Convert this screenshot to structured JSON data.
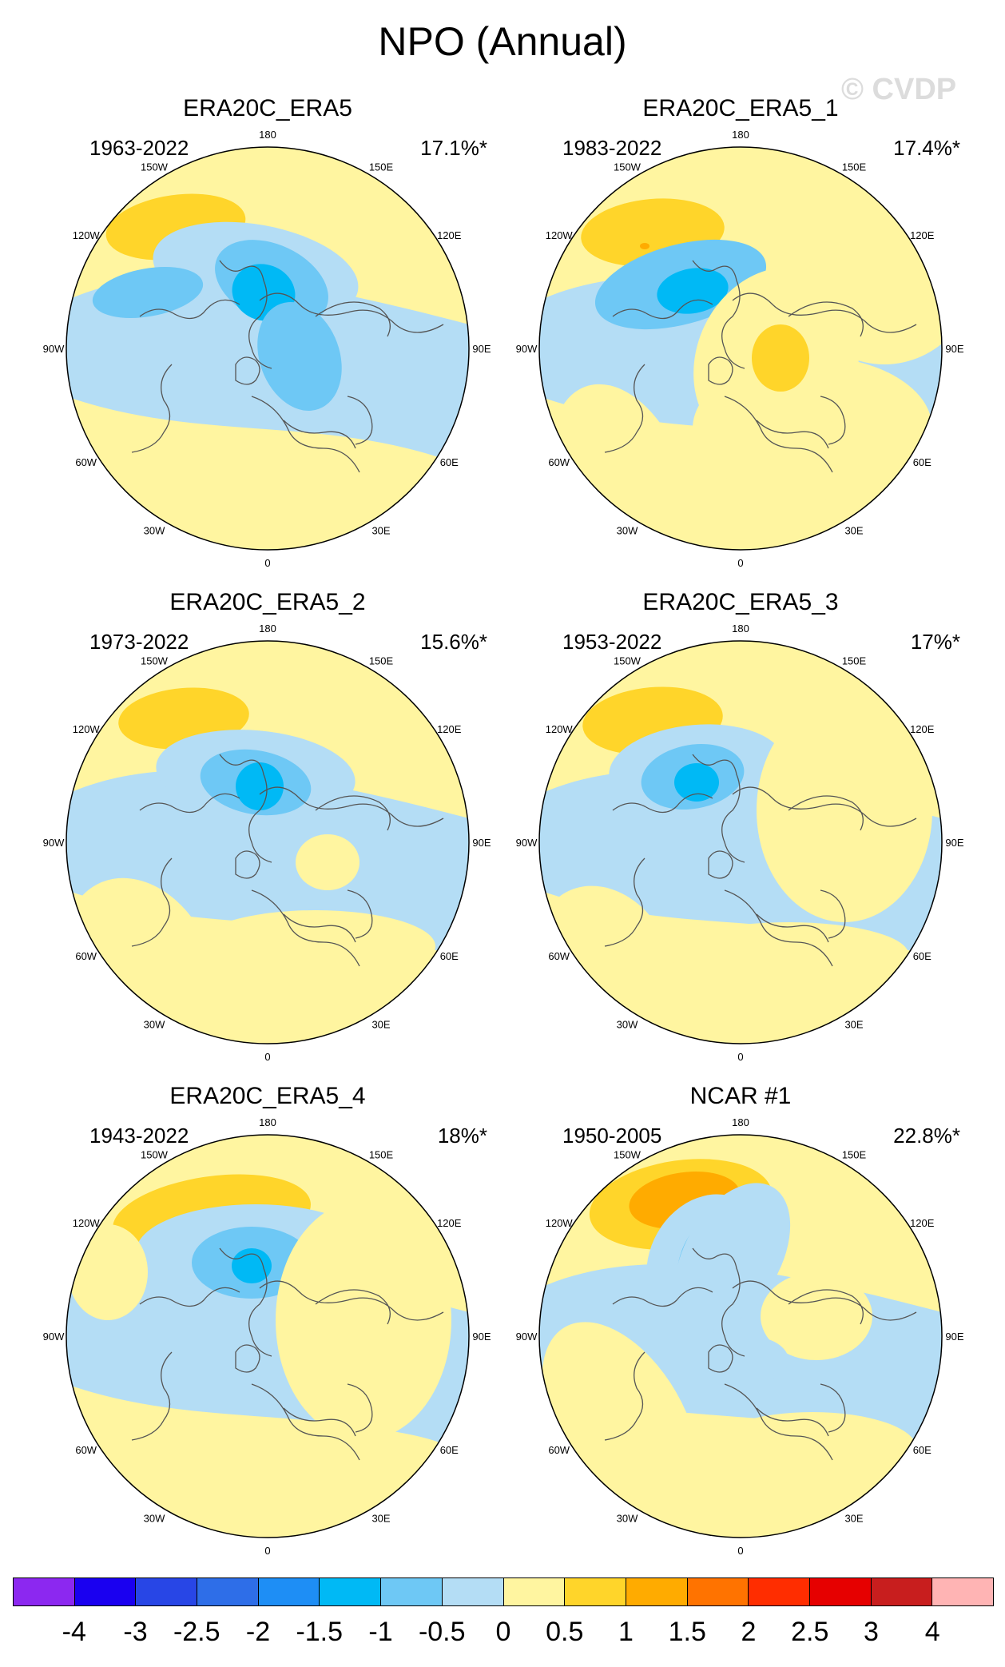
{
  "title": "NPO (Annual)",
  "watermark": "© CVDP",
  "lon_labels": {
    "top": "180",
    "bottom": "0",
    "upper_left": "150W",
    "upper_right": "150E",
    "left_upper": "120W",
    "right_upper": "120E",
    "left": "90W",
    "right": "90E",
    "left_lower": "60W",
    "right_lower": "60E",
    "lower_left": "30W",
    "lower_right": "30E"
  },
  "colors": {
    "ocean_neg": "#b4ddf5",
    "neutral_pos": "#fff5a0",
    "land_line": "#555555"
  },
  "panels": [
    {
      "title": "ERA20C_ERA5",
      "years": "1963-2022",
      "pct": "17.1%*"
    },
    {
      "title": "ERA20C_ERA5_1",
      "years": "1983-2022",
      "pct": "17.4%*"
    },
    {
      "title": "ERA20C_ERA5_2",
      "years": "1973-2022",
      "pct": "15.6%*"
    },
    {
      "title": "ERA20C_ERA5_3",
      "years": "1953-2022",
      "pct": "17%*"
    },
    {
      "title": "ERA20C_ERA5_4",
      "years": "1943-2022",
      "pct": "18%*"
    },
    {
      "title": "NCAR #1",
      "years": "1950-2005",
      "pct": "22.8%*"
    }
  ],
  "colorbar": {
    "colors": [
      "#8c28f0",
      "#1a00f0",
      "#2846e6",
      "#2e6ee8",
      "#1e8ef5",
      "#00b9f5",
      "#6ec8f5",
      "#b4ddf5",
      "#fff5a0",
      "#ffd52a",
      "#ffab00",
      "#ff7300",
      "#ff2d00",
      "#e60000",
      "#c81e1e",
      "#ffb4b4"
    ],
    "labels": [
      "-4",
      "-3",
      "-2.5",
      "-2",
      "-1.5",
      "-1",
      "-0.5",
      "0",
      "0.5",
      "1",
      "1.5",
      "2",
      "2.5",
      "3",
      "4"
    ]
  }
}
